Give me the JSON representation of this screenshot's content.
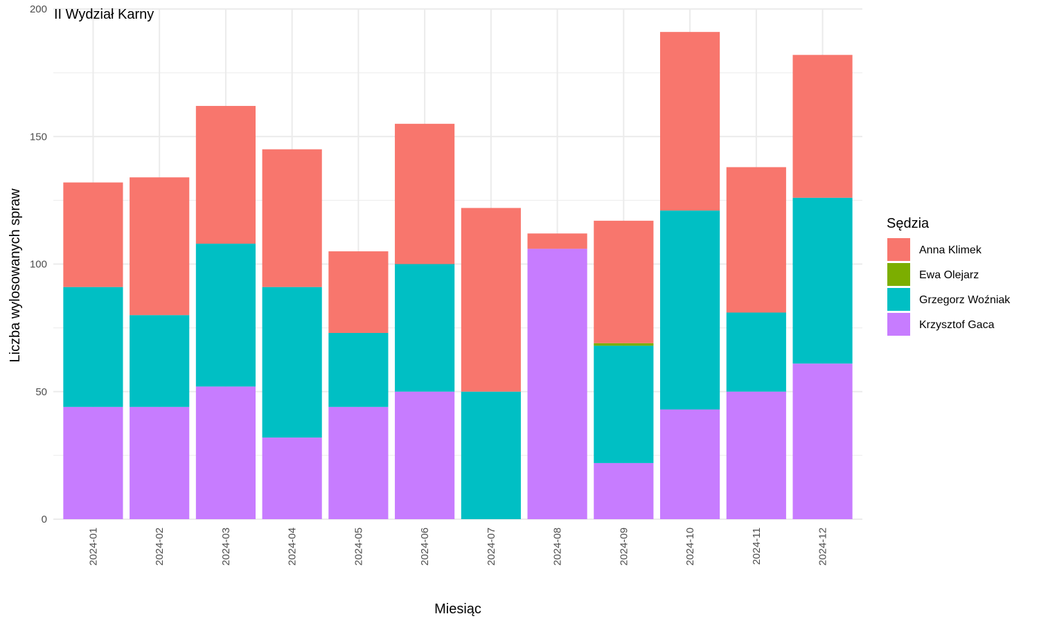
{
  "chart_data": {
    "type": "bar",
    "stacked": true,
    "title": "II Wydział Karny",
    "xlabel": "Miesiąc",
    "ylabel": "Liczba wylosowanych spraw",
    "ylim": [
      0,
      200
    ],
    "yticks": [
      0,
      50,
      100,
      150,
      200
    ],
    "grid": true,
    "legend_position": "right",
    "legend_title": "Sędzia",
    "categories": [
      "2024-01",
      "2024-02",
      "2024-03",
      "2024-04",
      "2024-05",
      "2024-06",
      "2024-07",
      "2024-08",
      "2024-09",
      "2024-10",
      "2024-11",
      "2024-12"
    ],
    "series": [
      {
        "name": "Anna Klimek",
        "color": "#F8766D",
        "values": [
          41,
          54,
          54,
          54,
          32,
          55,
          72,
          6,
          48,
          70,
          57,
          56
        ]
      },
      {
        "name": "Ewa Olejarz",
        "color": "#7CAE00",
        "values": [
          0,
          0,
          0,
          0,
          0,
          0,
          0,
          0,
          1,
          0,
          0,
          0
        ]
      },
      {
        "name": "Grzegorz Woźniak",
        "color": "#00BFC4",
        "values": [
          47,
          36,
          56,
          59,
          29,
          50,
          50,
          0,
          46,
          78,
          31,
          65
        ]
      },
      {
        "name": "Krzysztof Gaca",
        "color": "#C77CFF",
        "values": [
          44,
          44,
          52,
          32,
          44,
          50,
          0,
          106,
          22,
          43,
          50,
          61
        ]
      }
    ]
  }
}
